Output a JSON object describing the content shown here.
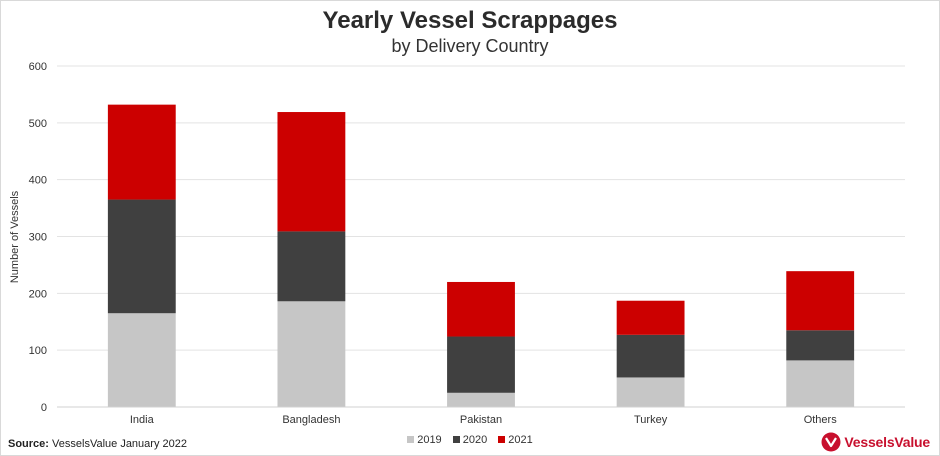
{
  "title": "Yearly Vessel Scrappages",
  "subtitle": "by Delivery Country",
  "source_label": "Source:",
  "source_text": "VesselsValue January 2022",
  "logo_text": "VesselsValue",
  "colors": {
    "s2019": "#c6c6c6",
    "s2020": "#404040",
    "s2021": "#cc0000",
    "grid": "#e3e3e3"
  },
  "chart_data": {
    "type": "bar",
    "stacked": true,
    "categories": [
      "India",
      "Bangladesh",
      "Pakistan",
      "Turkey",
      "Others"
    ],
    "series": [
      {
        "name": "2019",
        "values": [
          165,
          186,
          25,
          52,
          82
        ],
        "color": "#c6c6c6"
      },
      {
        "name": "2020",
        "values": [
          200,
          123,
          99,
          75,
          53
        ],
        "color": "#404040"
      },
      {
        "name": "2021",
        "values": [
          167,
          210,
          96,
          60,
          104
        ],
        "color": "#cc0000"
      }
    ],
    "ylabel": "Number of Vessels",
    "ylim": [
      0,
      600
    ],
    "yticks": [
      0,
      100,
      200,
      300,
      400,
      500,
      600
    ],
    "grid": true,
    "legend": "bottom"
  }
}
